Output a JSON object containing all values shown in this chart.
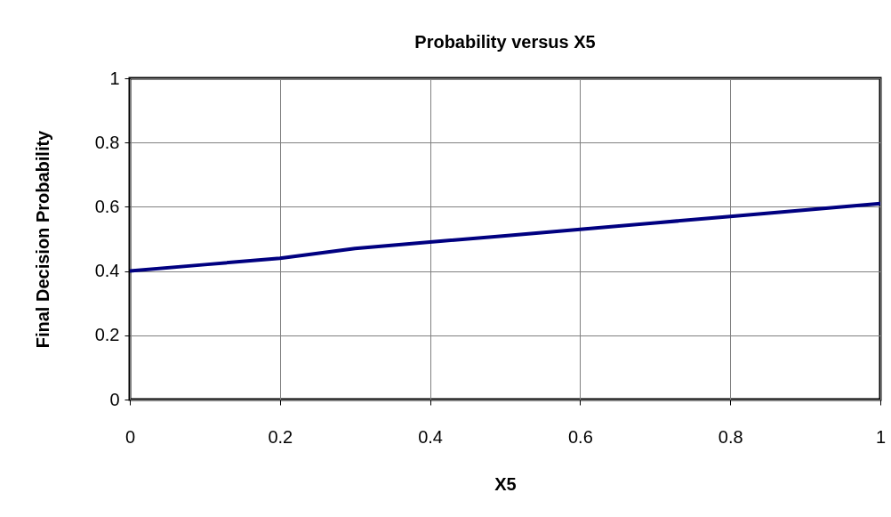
{
  "chart_data": {
    "type": "line",
    "title": "Probability versus X5",
    "xlabel": "X5",
    "ylabel": "Final Decision Probability",
    "x": [
      0,
      0.1,
      0.2,
      0.3,
      0.4,
      0.5,
      0.6,
      0.7,
      0.8,
      0.9,
      1
    ],
    "series": [
      {
        "color": "#000080",
        "values": [
          0.4,
          0.42,
          0.44,
          0.47,
          0.49,
          0.51,
          0.53,
          0.55,
          0.57,
          0.59,
          0.61
        ]
      }
    ],
    "xlim": [
      0,
      1
    ],
    "ylim": [
      0,
      1
    ],
    "xticks": [
      0,
      0.2,
      0.4,
      0.6,
      0.8,
      1
    ],
    "yticks": [
      0,
      0.2,
      0.4,
      0.6,
      0.8,
      1
    ],
    "grid": true,
    "legend": false,
    "marker": "none",
    "line_style": "solid"
  }
}
